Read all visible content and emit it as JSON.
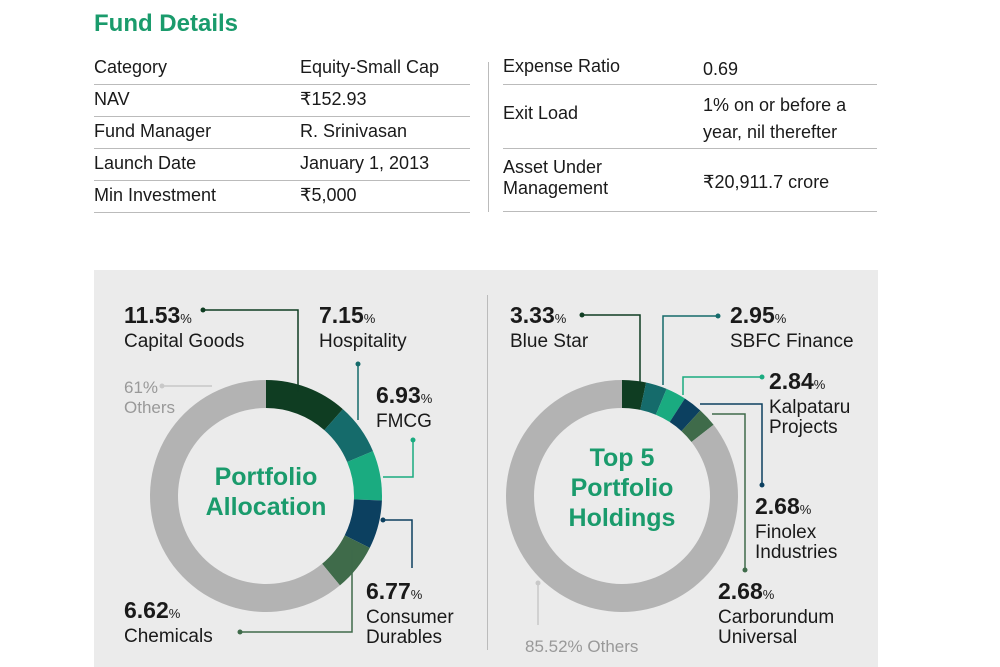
{
  "fund_details": {
    "title": "Fund Details",
    "left": [
      [
        "Category",
        "Equity-Small Cap"
      ],
      [
        "NAV",
        "₹152.93"
      ],
      [
        "Fund Manager",
        "R. Srinivasan"
      ],
      [
        "Launch Date",
        "January 1, 2013"
      ],
      [
        "Min Investment",
        "₹5,000"
      ]
    ],
    "right": [
      [
        "Expense Ratio",
        "0.69"
      ],
      [
        "Exit Load",
        "1% on or before a year, nil therefter"
      ],
      [
        "Asset Under Management",
        "₹20,911.7 crore"
      ]
    ]
  },
  "chart_data": [
    {
      "type": "pie",
      "title": "Portfolio Allocation",
      "unit": "%",
      "categories": [
        "Capital Goods",
        "Hospitality",
        "FMCG",
        "Consumer Durables",
        "Chemicals",
        "Others"
      ],
      "values": [
        11.53,
        7.15,
        6.93,
        6.77,
        6.62,
        61
      ],
      "colors": [
        "#0f3d22",
        "#156b6b",
        "#1aab80",
        "#0c4060",
        "#3f6b4a",
        "#b3b3b3"
      ]
    },
    {
      "type": "pie",
      "title": "Top 5 Portfolio Holdings",
      "unit": "%",
      "categories": [
        "Blue Star",
        "SBFC Finance",
        "Kalpataru Projects",
        "Finolex Industries",
        "Carborundum Universal",
        "Others"
      ],
      "values": [
        3.33,
        2.95,
        2.84,
        2.68,
        2.68,
        85.52
      ],
      "colors": [
        "#0f3d22",
        "#156b6b",
        "#1aab80",
        "#0c4060",
        "#3f6b4a",
        "#b3b3b3"
      ]
    }
  ]
}
